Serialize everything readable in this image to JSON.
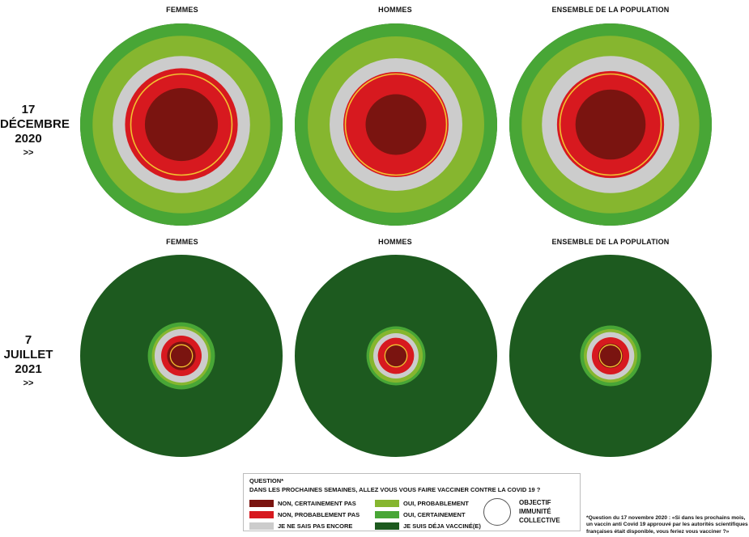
{
  "rows": [
    {
      "label_lines": [
        "17",
        "DÉCEMBRE",
        "2020"
      ],
      "arrow": ">>"
    },
    {
      "label_lines": [
        "7",
        "JUILLET",
        "2021"
      ],
      "arrow": ">>"
    }
  ],
  "panel_titles": [
    "FEMMES",
    "HOMMES",
    "ENSEMBLE DE LA POPULATION"
  ],
  "legend": {
    "question_label": "QUESTION*",
    "question_text": "DANS LES PROCHAINES SEMAINES, ALLEZ VOUS VOUS FAIRE VACCINER CONTRE LA COVID 19 ?",
    "items": [
      {
        "label": "NON, CERTAINEMENT PAS",
        "color": "#7a1410"
      },
      {
        "label": "NON, PROBABLEMENT PAS",
        "color": "#d7191f"
      },
      {
        "label": "JE NE SAIS PAS ENCORE",
        "color": "#cccccc"
      },
      {
        "label": "OUI, PROBABLEMENT",
        "color": "#86b62f"
      },
      {
        "label": "OUI, CERTAINEMENT",
        "color": "#48a636"
      },
      {
        "label": "JE SUIS DÉJA VACCINÉ(E)",
        "color": "#1d5a1f"
      }
    ],
    "immunity_label": "OBJECTIF IMMUNITÉ COLLECTIVE",
    "immunity_color": "#f2c230"
  },
  "footnote": "*Question du 17 novembre 2020 : «Si dans les prochains mois, un vaccin anti Covid 19 approuvé par les autorités scientifiques françaises était disponible, vous feriez vous vacciner ?»",
  "chart_data": {
    "type": "concentric-area",
    "note_units": "cumulative share of respondents (%), from the centre outwards",
    "categories_order": [
      "NON, CERTAINEMENT PAS",
      "NON, PROBABLEMENT PAS",
      "JE NE SAIS PAS ENCORE",
      "OUI, PROBABLEMENT",
      "OUI, CERTAINEMENT",
      "JE SUIS DÉJA VACCINÉ(E)"
    ],
    "colors": [
      "#7a1410",
      "#d7191f",
      "#cccccc",
      "#86b62f",
      "#48a636",
      "#1d5a1f"
    ],
    "panels": [
      {
        "row": 0,
        "title": "FEMMES",
        "cumulative": [
          13,
          31,
          46,
          77,
          100,
          100
        ],
        "immunity_target": 25
      },
      {
        "row": 0,
        "title": "HOMMES",
        "cumulative": [
          9,
          27,
          43,
          76,
          100,
          100
        ],
        "immunity_target": 25
      },
      {
        "row": 0,
        "title": "ENSEMBLE DE LA POPULATION",
        "cumulative": [
          12,
          28,
          46,
          77,
          100,
          100
        ],
        "immunity_target": 25
      },
      {
        "row": 1,
        "title": "FEMMES",
        "cumulative": [
          2,
          4,
          7,
          8.5,
          11,
          100
        ],
        "immunity_target": 1.2
      },
      {
        "row": 1,
        "title": "HOMMES",
        "cumulative": [
          1.2,
          3.2,
          5,
          7,
          8.5,
          100
        ],
        "immunity_target": 1.2
      },
      {
        "row": 1,
        "title": "ENSEMBLE DE LA POPULATION",
        "cumulative": [
          1.5,
          3.4,
          5.5,
          7,
          9,
          100
        ],
        "immunity_target": 1.2
      }
    ]
  }
}
